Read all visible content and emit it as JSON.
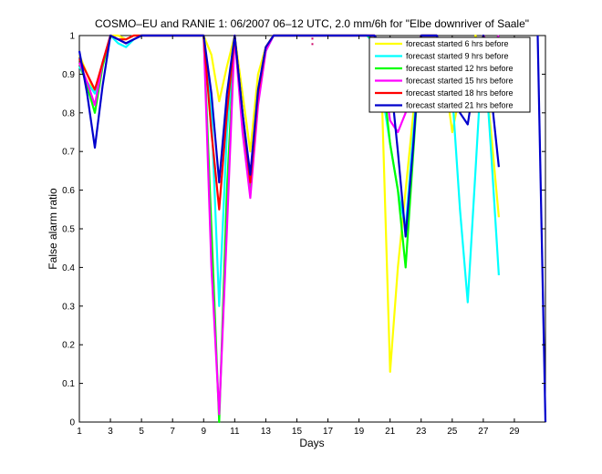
{
  "chart_data": {
    "type": "line",
    "title": "COSMO–EU and RANIE 1: 06/2007 06–12 UTC, 2.0 mm/6h for \"Elbe downriver of Saale\"",
    "xlabel": "Days",
    "ylabel": "False alarm ratio",
    "xlim": [
      1,
      31
    ],
    "ylim": [
      0,
      1
    ],
    "xticks": [
      1,
      3,
      5,
      7,
      9,
      11,
      13,
      15,
      17,
      19,
      21,
      23,
      25,
      27,
      29
    ],
    "yticks": [
      0,
      0.1,
      0.2,
      0.3,
      0.4,
      0.5,
      0.6,
      0.7,
      0.8,
      0.9,
      1
    ],
    "ytick_labels": [
      "0",
      "0.1",
      "0.2",
      "0.3",
      "0.4",
      "0.5",
      "0.6",
      "0.7",
      "0.8",
      "0.9",
      "1"
    ],
    "grid": false,
    "legend_position": "top-right",
    "x": [
      1,
      1.5,
      2,
      2.5,
      3,
      3.5,
      4,
      4.5,
      5,
      5.5,
      6,
      6.5,
      7,
      7.5,
      8,
      8.5,
      9,
      9.5,
      10,
      10.5,
      11,
      11.5,
      12,
      12.5,
      13,
      13.5,
      14,
      14.5,
      15,
      15.5,
      16,
      16.5,
      17,
      17.5,
      18,
      18.5,
      19,
      19.5,
      20,
      20.5,
      21,
      21.5,
      22,
      22.5,
      23,
      23.5,
      24,
      24.5,
      25,
      25.5,
      26,
      26.5,
      27,
      27.5,
      28
    ],
    "series": [
      {
        "name": "forecast started 6 hrs before",
        "color": "#ffff00",
        "values": [
          0.95,
          0.9,
          0.85,
          0.93,
          1,
          1,
          0.99,
          1,
          1,
          1,
          1,
          1,
          1,
          1,
          1,
          1,
          1,
          0.95,
          0.83,
          0.92,
          1,
          0.85,
          0.7,
          0.9,
          0.97,
          1,
          1,
          1,
          1,
          1,
          1,
          1,
          1,
          1,
          1,
          1,
          1,
          1,
          1,
          0.8,
          0.13,
          0.4,
          0.6,
          0.8,
          1,
          1,
          1,
          0.9,
          0.75,
          0.85,
          0.9,
          1,
          0.95,
          0.75,
          0.53
        ]
      },
      {
        "name": "forecast started 9 hrs before",
        "color": "#00ffff",
        "values": [
          0.92,
          0.88,
          0.85,
          0.93,
          1,
          0.98,
          0.97,
          0.99,
          1,
          1,
          1,
          1,
          1,
          1,
          1,
          1,
          1,
          0.8,
          0.3,
          0.75,
          1,
          0.8,
          0.62,
          0.85,
          0.96,
          1,
          1,
          1,
          1,
          1,
          1,
          1,
          1,
          1,
          1,
          1,
          1,
          1,
          0.98,
          0.85,
          0.72,
          0.6,
          0.5,
          0.75,
          1,
          1,
          1,
          0.95,
          0.85,
          0.55,
          0.31,
          0.65,
          1,
          0.7,
          0.38
        ]
      },
      {
        "name": "forecast started 12 hrs before",
        "color": "#00ff00",
        "values": [
          0.93,
          0.87,
          0.8,
          0.92,
          1,
          0.99,
          0.98,
          0.99,
          1,
          1,
          1,
          1,
          1,
          1,
          1,
          1,
          1,
          0.5,
          0.0,
          0.6,
          1,
          0.8,
          0.6,
          0.85,
          0.97,
          1,
          1,
          1,
          1,
          1,
          1,
          1,
          1,
          1,
          1,
          1,
          1,
          1,
          0.99,
          0.9,
          0.72,
          0.6,
          0.4,
          0.7,
          1,
          1,
          1,
          0.95,
          0.9,
          0.87,
          0.85,
          0.92,
          0.98,
          0.97,
          1
        ]
      },
      {
        "name": "forecast started 15 hrs before",
        "color": "#ff00ff",
        "values": [
          0.93,
          0.88,
          0.82,
          0.93,
          1,
          0.99,
          0.98,
          0.99,
          1,
          1,
          1,
          1,
          1,
          1,
          1,
          1,
          1,
          0.4,
          0.02,
          0.5,
          1,
          0.75,
          0.58,
          0.82,
          0.96,
          1,
          1,
          1,
          1,
          1,
          1,
          1,
          1,
          1,
          1,
          1,
          1,
          1,
          1,
          0.92,
          0.78,
          0.75,
          0.8,
          0.9,
          1,
          1,
          1,
          0.95,
          0.9,
          0.87,
          0.85,
          0.93,
          1,
          0.97,
          1
        ]
      },
      {
        "name": "forecast started 18 hrs before",
        "color": "#ff0000",
        "values": [
          0.94,
          0.9,
          0.86,
          0.93,
          1,
          0.99,
          0.99,
          1,
          1,
          1,
          1,
          1,
          1,
          1,
          1,
          1,
          1,
          0.75,
          0.55,
          0.8,
          1,
          0.8,
          0.62,
          0.85,
          0.97,
          1,
          1,
          1,
          1,
          1,
          1,
          1,
          1,
          1,
          1,
          1,
          1,
          1,
          1,
          0.95,
          0.84,
          0.86,
          0.87,
          0.93,
          1,
          1,
          1,
          0.95,
          0.9,
          0.87,
          0.85,
          0.93,
          1,
          0.9,
          0.81
        ]
      },
      {
        "name": "forecast started 21 hrs before",
        "color": "#0000cc",
        "values": [
          0.96,
          0.85,
          0.71,
          0.87,
          1,
          0.99,
          0.98,
          0.99,
          1,
          1,
          1,
          1,
          1,
          1,
          1,
          1,
          1,
          0.85,
          0.62,
          0.85,
          1,
          0.8,
          0.64,
          0.86,
          0.97,
          1,
          1,
          1,
          1,
          1,
          1,
          1,
          1,
          1,
          1,
          1,
          1,
          1,
          1,
          0.97,
          0.9,
          0.7,
          0.48,
          0.72,
          1,
          1,
          1,
          0.95,
          0.9,
          0.8,
          0.77,
          0.9,
          1,
          0.85,
          0.66
        ]
      }
    ],
    "extra_segments": [
      {
        "series": "forecast started 21 hrs before",
        "x": [
          30.5,
          31
        ],
        "values": [
          1,
          0
        ]
      }
    ],
    "annotations": [
      {
        "type": "marker",
        "color": "#cc0066",
        "x": 16,
        "y": 0.985
      }
    ]
  }
}
